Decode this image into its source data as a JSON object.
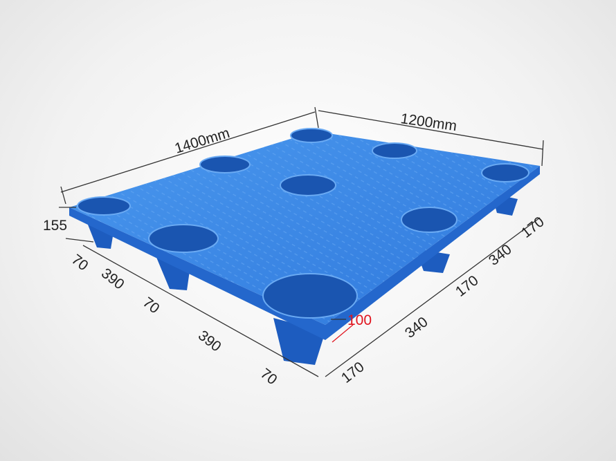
{
  "product": {
    "name": "plastic pallet",
    "color": "#2f7fe0"
  },
  "dimensions": {
    "length": "1400mm",
    "width": "1200mm",
    "height": "155",
    "left_side": [
      "70",
      "390",
      "70",
      "390",
      "70"
    ],
    "right_side": [
      "170",
      "340",
      "170",
      "340",
      "170"
    ],
    "leg_height": "100"
  },
  "colors": {
    "pallet_top": "#3a8ae6",
    "pallet_side": "#1f62c4",
    "dimension_line": "#333333",
    "highlight": "#e0141e"
  }
}
